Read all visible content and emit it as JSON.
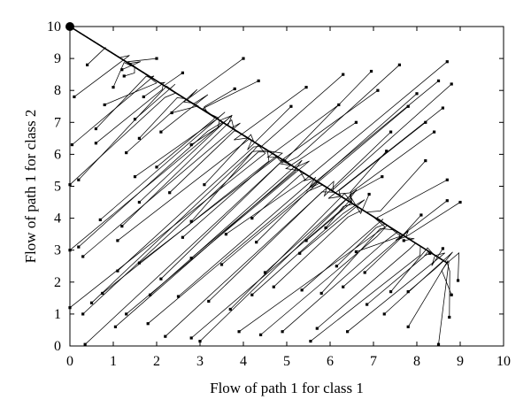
{
  "chart_data": {
    "type": "line",
    "title": "",
    "xlabel": "Flow of path 1 for class 1",
    "ylabel": "Flow of path 1 for class 2",
    "xlim": [
      0,
      10
    ],
    "ylim": [
      0,
      10
    ],
    "xticks": [
      "0",
      "1",
      "2",
      "3",
      "4",
      "5",
      "6",
      "7",
      "8",
      "9",
      "10"
    ],
    "yticks": [
      "0",
      "1",
      "2",
      "3",
      "4",
      "5",
      "6",
      "7",
      "8",
      "9",
      "10"
    ],
    "grid": false,
    "legend": "none",
    "equilibrium_line": {
      "from": [
        0,
        10
      ],
      "to": [
        8.7,
        2.6
      ]
    },
    "attractor": {
      "x": 0.0,
      "y": 10.0
    },
    "line_color": "#000000",
    "trajectory_start_points": [
      [
        0.4,
        8.8
      ],
      [
        1.2,
        8.65
      ],
      [
        1.25,
        8.45
      ],
      [
        2.0,
        9.0
      ],
      [
        2.6,
        8.55
      ],
      [
        4.0,
        9.0
      ],
      [
        4.35,
        8.3
      ],
      [
        3.8,
        8.05
      ],
      [
        5.45,
        8.1
      ],
      [
        6.3,
        8.5
      ],
      [
        6.95,
        8.6
      ],
      [
        7.6,
        8.8
      ],
      [
        8.7,
        8.9
      ],
      [
        8.5,
        8.3
      ],
      [
        8.8,
        8.2
      ],
      [
        7.1,
        8.0
      ],
      [
        8.0,
        7.9
      ],
      [
        6.2,
        7.55
      ],
      [
        7.8,
        7.5
      ],
      [
        8.6,
        7.45
      ],
      [
        8.2,
        7.0
      ],
      [
        5.1,
        7.5
      ],
      [
        6.6,
        7.0
      ],
      [
        7.4,
        6.7
      ],
      [
        8.4,
        6.7
      ],
      [
        7.3,
        6.1
      ],
      [
        8.2,
        5.8
      ],
      [
        7.2,
        5.3
      ],
      [
        6.9,
        4.75
      ],
      [
        8.7,
        5.2
      ],
      [
        9.0,
        4.5
      ],
      [
        8.7,
        4.55
      ],
      [
        8.1,
        4.1
      ],
      [
        7.7,
        3.3
      ],
      [
        8.6,
        3.05
      ],
      [
        8.3,
        2.9
      ],
      [
        8.95,
        2.05
      ],
      [
        7.8,
        1.7
      ],
      [
        8.8,
        1.6
      ],
      [
        8.75,
        0.9
      ],
      [
        8.5,
        0.05
      ],
      [
        7.8,
        0.6
      ],
      [
        7.25,
        1.0
      ],
      [
        6.85,
        1.3
      ],
      [
        6.4,
        0.45
      ],
      [
        5.7,
        0.55
      ],
      [
        5.55,
        0.15
      ],
      [
        4.9,
        0.45
      ],
      [
        4.4,
        0.35
      ],
      [
        3.9,
        0.45
      ],
      [
        3.0,
        0.15
      ],
      [
        2.8,
        0.25
      ],
      [
        2.2,
        0.3
      ],
      [
        1.8,
        0.7
      ],
      [
        1.05,
        0.6
      ],
      [
        0.35,
        0.05
      ],
      [
        0.3,
        1.0
      ],
      [
        0.0,
        1.2
      ],
      [
        0.5,
        1.35
      ],
      [
        0.75,
        1.65
      ],
      [
        1.3,
        1.0
      ],
      [
        1.85,
        1.6
      ],
      [
        2.5,
        1.55
      ],
      [
        3.2,
        1.4
      ],
      [
        3.7,
        1.15
      ],
      [
        4.2,
        1.6
      ],
      [
        4.7,
        1.85
      ],
      [
        5.35,
        1.75
      ],
      [
        5.8,
        1.65
      ],
      [
        6.3,
        1.85
      ],
      [
        6.8,
        2.3
      ],
      [
        7.4,
        1.7
      ],
      [
        6.6,
        2.95
      ],
      [
        6.15,
        2.5
      ],
      [
        5.3,
        2.9
      ],
      [
        4.5,
        2.3
      ],
      [
        3.5,
        2.55
      ],
      [
        2.8,
        2.75
      ],
      [
        2.1,
        2.1
      ],
      [
        1.6,
        2.6
      ],
      [
        1.1,
        2.35
      ],
      [
        0.3,
        2.8
      ],
      [
        0.0,
        3.0
      ],
      [
        0.2,
        3.1
      ],
      [
        1.1,
        3.3
      ],
      [
        2.6,
        3.4
      ],
      [
        3.6,
        3.5
      ],
      [
        4.3,
        3.25
      ],
      [
        5.45,
        3.3
      ],
      [
        5.9,
        3.7
      ],
      [
        4.2,
        4.0
      ],
      [
        2.8,
        3.9
      ],
      [
        1.2,
        3.75
      ],
      [
        0.7,
        3.95
      ],
      [
        1.6,
        4.5
      ],
      [
        2.3,
        4.8
      ],
      [
        0.0,
        5.05
      ],
      [
        0.2,
        5.2
      ],
      [
        1.5,
        5.3
      ],
      [
        3.1,
        5.05
      ],
      [
        2.0,
        5.6
      ],
      [
        1.3,
        6.05
      ],
      [
        0.6,
        6.35
      ],
      [
        0.05,
        6.3
      ],
      [
        1.6,
        6.5
      ],
      [
        0.6,
        6.8
      ],
      [
        2.8,
        6.3
      ],
      [
        2.1,
        6.7
      ],
      [
        1.5,
        7.1
      ],
      [
        2.35,
        7.3
      ],
      [
        0.8,
        7.55
      ],
      [
        1.7,
        7.8
      ],
      [
        0.1,
        7.8
      ],
      [
        1.0,
        8.1
      ]
    ]
  }
}
